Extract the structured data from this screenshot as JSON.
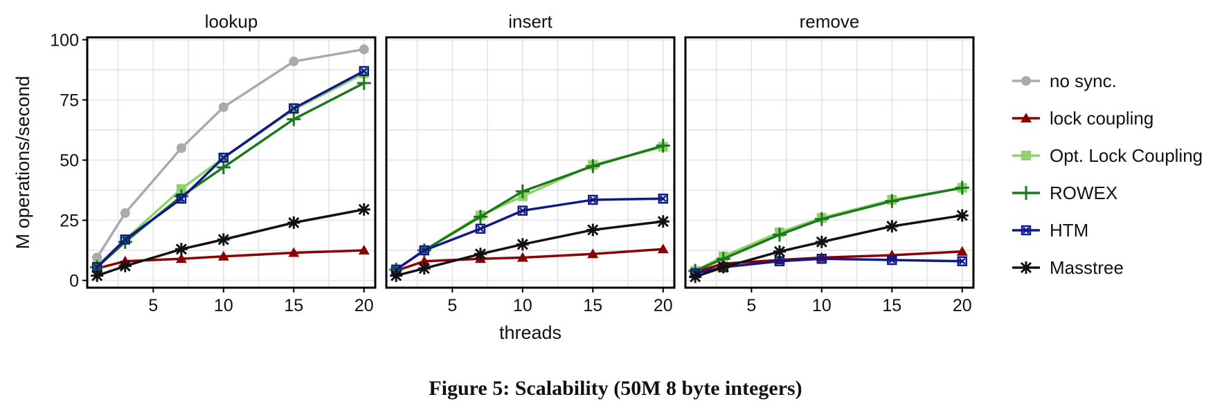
{
  "caption": "Figure 5: Scalability (50M 8 byte integers)",
  "chart_data": {
    "type": "line",
    "xlabel": "threads",
    "ylabel": "M operations/second",
    "xlim": [
      0.3,
      20.8
    ],
    "ylim": [
      -3,
      101
    ],
    "xticks": [
      5,
      10,
      15,
      20
    ],
    "yticks": [
      0,
      25,
      50,
      75,
      100
    ],
    "grid": true,
    "legend_position": "right",
    "series_styles": [
      {
        "name": "no sync.",
        "color": "#aaaaaa",
        "marker": "circle"
      },
      {
        "name": "lock coupling",
        "color": "#8b0000",
        "marker": "triangle"
      },
      {
        "name": "Opt. Lock Coupling",
        "color": "#8fd16a",
        "marker": "square"
      },
      {
        "name": "ROWEX",
        "color": "#1a7a1a",
        "marker": "plus"
      },
      {
        "name": "HTM",
        "color": "#10188a",
        "marker": "boxx"
      },
      {
        "name": "Masstree",
        "color": "#111111",
        "marker": "asterisk"
      }
    ],
    "panels": [
      {
        "title": "lookup",
        "x": [
          1,
          3,
          7,
          10,
          15,
          20
        ],
        "series": [
          {
            "name": "no sync.",
            "values": [
              9.5,
              28,
              55,
              72,
              91,
              96
            ]
          },
          {
            "name": "lock coupling",
            "values": [
              5,
              8,
              9,
              10,
              11.5,
              12.5
            ]
          },
          {
            "name": "Opt. Lock Coupling",
            "values": [
              6,
              17,
              38,
              51,
              71,
              86
            ]
          },
          {
            "name": "ROWEX",
            "values": [
              5.5,
              16,
              35,
              47,
              67,
              82
            ]
          },
          {
            "name": "HTM",
            "values": [
              5.5,
              17,
              34,
              51,
              71.5,
              87
            ]
          },
          {
            "name": "Masstree",
            "values": [
              2,
              6,
              13,
              17,
              24,
              29.5
            ]
          }
        ]
      },
      {
        "title": "insert",
        "x": [
          1,
          3,
          7,
          10,
          15,
          20
        ],
        "series": [
          {
            "name": "lock coupling",
            "values": [
              4,
              8,
              9,
              9.5,
              11,
              13
            ]
          },
          {
            "name": "Opt. Lock Coupling",
            "values": [
              4.5,
              12.5,
              27,
              35,
              48,
              55.5
            ]
          },
          {
            "name": "ROWEX",
            "values": [
              4.5,
              12.5,
              26.5,
              37,
              47.5,
              56
            ]
          },
          {
            "name": "HTM",
            "values": [
              4.5,
              12.5,
              21.5,
              29,
              33.5,
              34
            ]
          },
          {
            "name": "Masstree",
            "values": [
              2,
              5,
              11,
              15,
              21,
              24.5
            ]
          }
        ]
      },
      {
        "title": "remove",
        "x": [
          1,
          3,
          7,
          10,
          15,
          20
        ],
        "series": [
          {
            "name": "lock coupling",
            "values": [
              3.5,
              7,
              8.5,
              9.5,
              10.5,
              12
            ]
          },
          {
            "name": "Opt. Lock Coupling",
            "values": [
              4,
              10,
              20,
              26,
              33.5,
              38.5
            ]
          },
          {
            "name": "ROWEX",
            "values": [
              4,
              9,
              19,
              25.5,
              33,
              38.5
            ]
          },
          {
            "name": "HTM",
            "values": [
              3,
              5.5,
              8,
              9,
              8.5,
              8
            ]
          },
          {
            "name": "Masstree",
            "values": [
              1.5,
              5.5,
              12,
              16,
              22.5,
              27
            ]
          }
        ]
      }
    ]
  }
}
